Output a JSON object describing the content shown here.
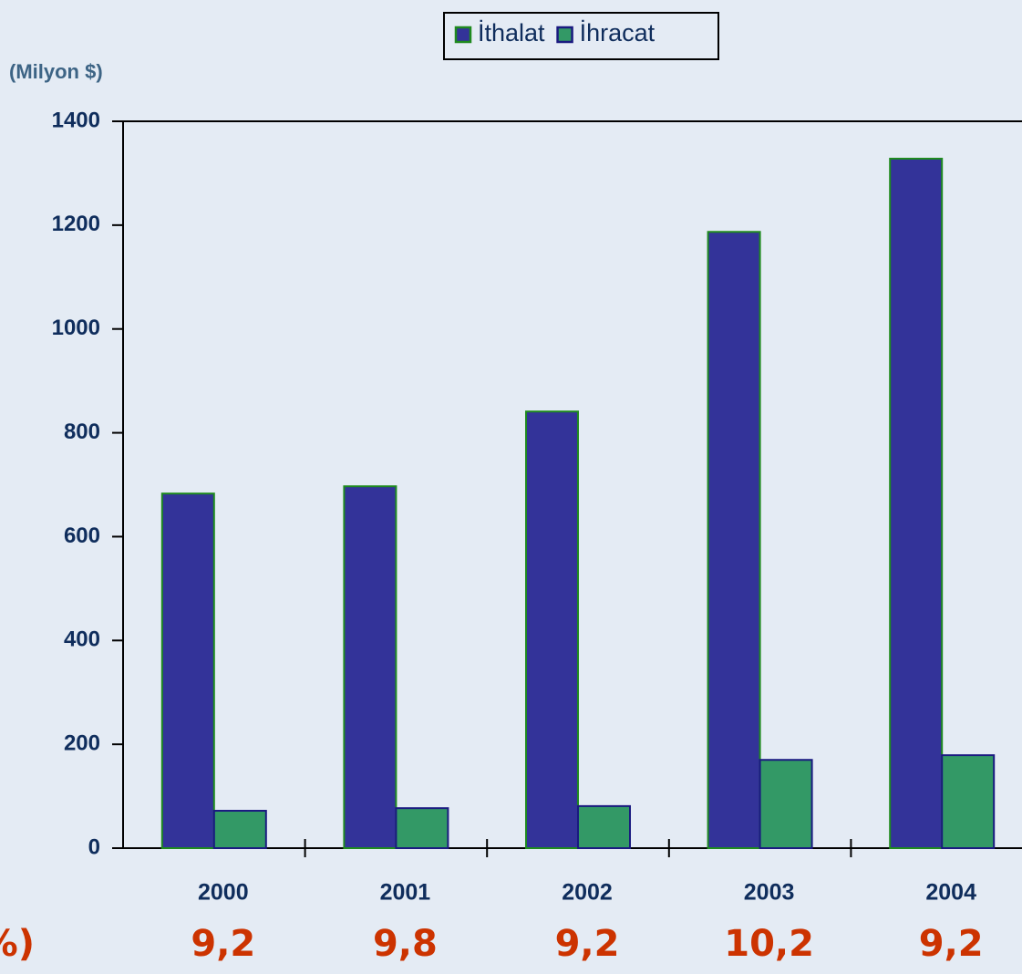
{
  "chart_data": {
    "type": "bar",
    "y_label": "(Milyon $)",
    "categories": [
      "2000",
      "2001",
      "2002",
      "2003",
      "2004"
    ],
    "series": [
      {
        "name": "İthalat",
        "color": "#333399",
        "border": "#1f8a1f",
        "values": [
          683,
          697,
          841,
          1187,
          1328
        ]
      },
      {
        "name": "İhracat",
        "color": "#339966",
        "border": "#1a1a80",
        "values": [
          72,
          77,
          81,
          170,
          179
        ]
      }
    ],
    "ylim": [
      0,
      1400
    ],
    "yticks": [
      0,
      200,
      400,
      600,
      800,
      1000,
      1200,
      1400
    ],
    "annotations": {
      "label": "(%)",
      "texts": [
        "9,2",
        "9,8",
        "9,2",
        "10,2",
        "9,2"
      ]
    }
  }
}
